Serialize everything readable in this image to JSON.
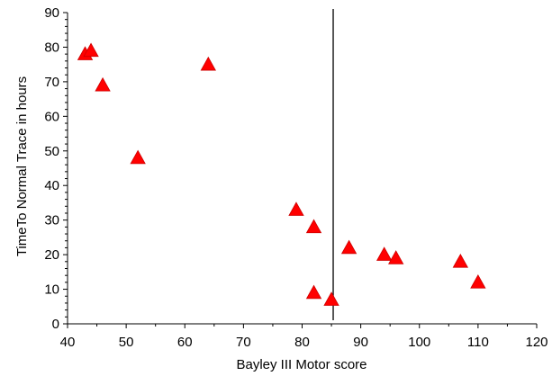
{
  "chart_data": {
    "type": "scatter",
    "title": "",
    "xlabel": "Bayley III Motor score",
    "ylabel": "TimeTo Normal Trace  in hours",
    "xlim": [
      40,
      120
    ],
    "ylim": [
      0,
      90
    ],
    "x_ticks": [
      40,
      50,
      60,
      70,
      80,
      90,
      100,
      110,
      120
    ],
    "y_ticks": [
      0,
      10,
      20,
      30,
      40,
      50,
      60,
      70,
      80,
      90
    ],
    "grid": false,
    "legend": "none",
    "marker": "triangle",
    "marker_color": "#ff0000",
    "marker_edge_color": "#cc0000",
    "reference_line": {
      "orientation": "vertical",
      "x": 85.3
    },
    "points": [
      {
        "x": 43,
        "y": 78
      },
      {
        "x": 44,
        "y": 79
      },
      {
        "x": 46,
        "y": 69
      },
      {
        "x": 52,
        "y": 48
      },
      {
        "x": 64,
        "y": 75
      },
      {
        "x": 79,
        "y": 33
      },
      {
        "x": 82,
        "y": 28
      },
      {
        "x": 82,
        "y": 9
      },
      {
        "x": 85,
        "y": 7
      },
      {
        "x": 88,
        "y": 22
      },
      {
        "x": 94,
        "y": 20
      },
      {
        "x": 96,
        "y": 19
      },
      {
        "x": 107,
        "y": 18
      },
      {
        "x": 110,
        "y": 12
      }
    ]
  }
}
